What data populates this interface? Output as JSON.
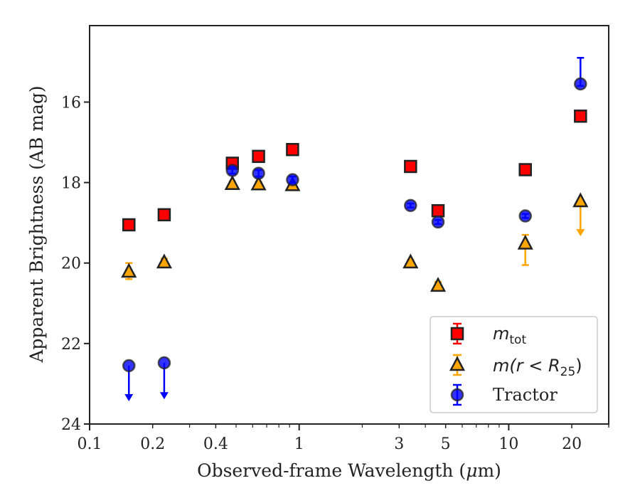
{
  "chart_data": {
    "type": "scatter",
    "xlabel_pre": "Observed-frame Wavelength (",
    "xlabel_mu": "μ",
    "xlabel_post": "m)",
    "ylabel": "Apparent Brightness (AB mag)",
    "xscale": "log",
    "xlim": [
      0.1,
      30
    ],
    "ylim": [
      24,
      14.1
    ],
    "y_inverted": true,
    "x_ticks": [
      {
        "v": 0.1,
        "label": "0.1"
      },
      {
        "v": 0.2,
        "label": "0.2"
      },
      {
        "v": 0.4,
        "label": "0.4"
      },
      {
        "v": 1,
        "label": "1"
      },
      {
        "v": 3,
        "label": "3"
      },
      {
        "v": 5,
        "label": "5"
      },
      {
        "v": 10,
        "label": "10"
      },
      {
        "v": 20,
        "label": "20"
      }
    ],
    "y_ticks": [
      {
        "v": 16,
        "label": "16"
      },
      {
        "v": 18,
        "label": "18"
      },
      {
        "v": 20,
        "label": "20"
      },
      {
        "v": 22,
        "label": "22"
      },
      {
        "v": 24,
        "label": "24"
      }
    ],
    "legend_position": "lower right",
    "series": [
      {
        "name": "m_tot",
        "legend_main": "m",
        "legend_sub": "tot",
        "marker": "square",
        "color": "#ff0000",
        "points": [
          {
            "x": 0.154,
            "y": 19.05,
            "yerr": 0.08
          },
          {
            "x": 0.227,
            "y": 18.8,
            "yerr": 0.08
          },
          {
            "x": 0.48,
            "y": 17.52,
            "yerr": 0.05
          },
          {
            "x": 0.64,
            "y": 17.35,
            "yerr": 0.05
          },
          {
            "x": 0.93,
            "y": 17.18,
            "yerr": 0.05
          },
          {
            "x": 3.4,
            "y": 17.6,
            "yerr": 0.05
          },
          {
            "x": 4.6,
            "y": 18.7,
            "yerr": 0.08
          },
          {
            "x": 12.0,
            "y": 17.68,
            "yerr": 0.05
          },
          {
            "x": 22.0,
            "y": 16.35,
            "yerr": 0.05
          }
        ]
      },
      {
        "name": "m(r < R25)",
        "legend_main": "m(r < R",
        "legend_sub": "25",
        "legend_post": ")",
        "marker": "triangle",
        "color": "#ffa500",
        "points": [
          {
            "x": 0.154,
            "y": 20.2,
            "yerr": 0.2
          },
          {
            "x": 0.227,
            "y": 19.97,
            "yerr": 0.08
          },
          {
            "x": 0.48,
            "y": 18.02,
            "yerr": 0.05
          },
          {
            "x": 0.64,
            "y": 18.03,
            "yerr": 0.05
          },
          {
            "x": 0.93,
            "y": 18.05,
            "yerr": 0.05
          },
          {
            "x": 3.4,
            "y": 19.97,
            "yerr": 0.05
          },
          {
            "x": 4.6,
            "y": 20.55,
            "yerr": 0.08
          },
          {
            "x": 12.0,
            "y": 19.5,
            "yerr_lo": 0.55,
            "yerr_hi": 0.2
          },
          {
            "x": 22.0,
            "y": 18.45,
            "upper_limit_to": 19.3
          }
        ]
      },
      {
        "name": "Tractor",
        "legend_main": "Tractor",
        "marker": "circle",
        "color": "#0000ff",
        "points": [
          {
            "x": 0.154,
            "y": 22.55,
            "upper_limit_to": 23.4
          },
          {
            "x": 0.227,
            "y": 22.48,
            "upper_limit_to": 23.35
          },
          {
            "x": 0.48,
            "y": 17.7,
            "yerr": 0.08
          },
          {
            "x": 0.64,
            "y": 17.77,
            "yerr": 0.08
          },
          {
            "x": 0.93,
            "y": 17.93,
            "yerr": 0.08
          },
          {
            "x": 3.4,
            "y": 18.57,
            "yerr": 0.05
          },
          {
            "x": 4.6,
            "y": 18.98,
            "yerr": 0.05
          },
          {
            "x": 12.0,
            "y": 18.83,
            "yerr": 0.05
          },
          {
            "x": 22.0,
            "y": 15.55,
            "yerr_lo": 0.05,
            "yerr_hi": 0.65
          }
        ]
      }
    ]
  }
}
